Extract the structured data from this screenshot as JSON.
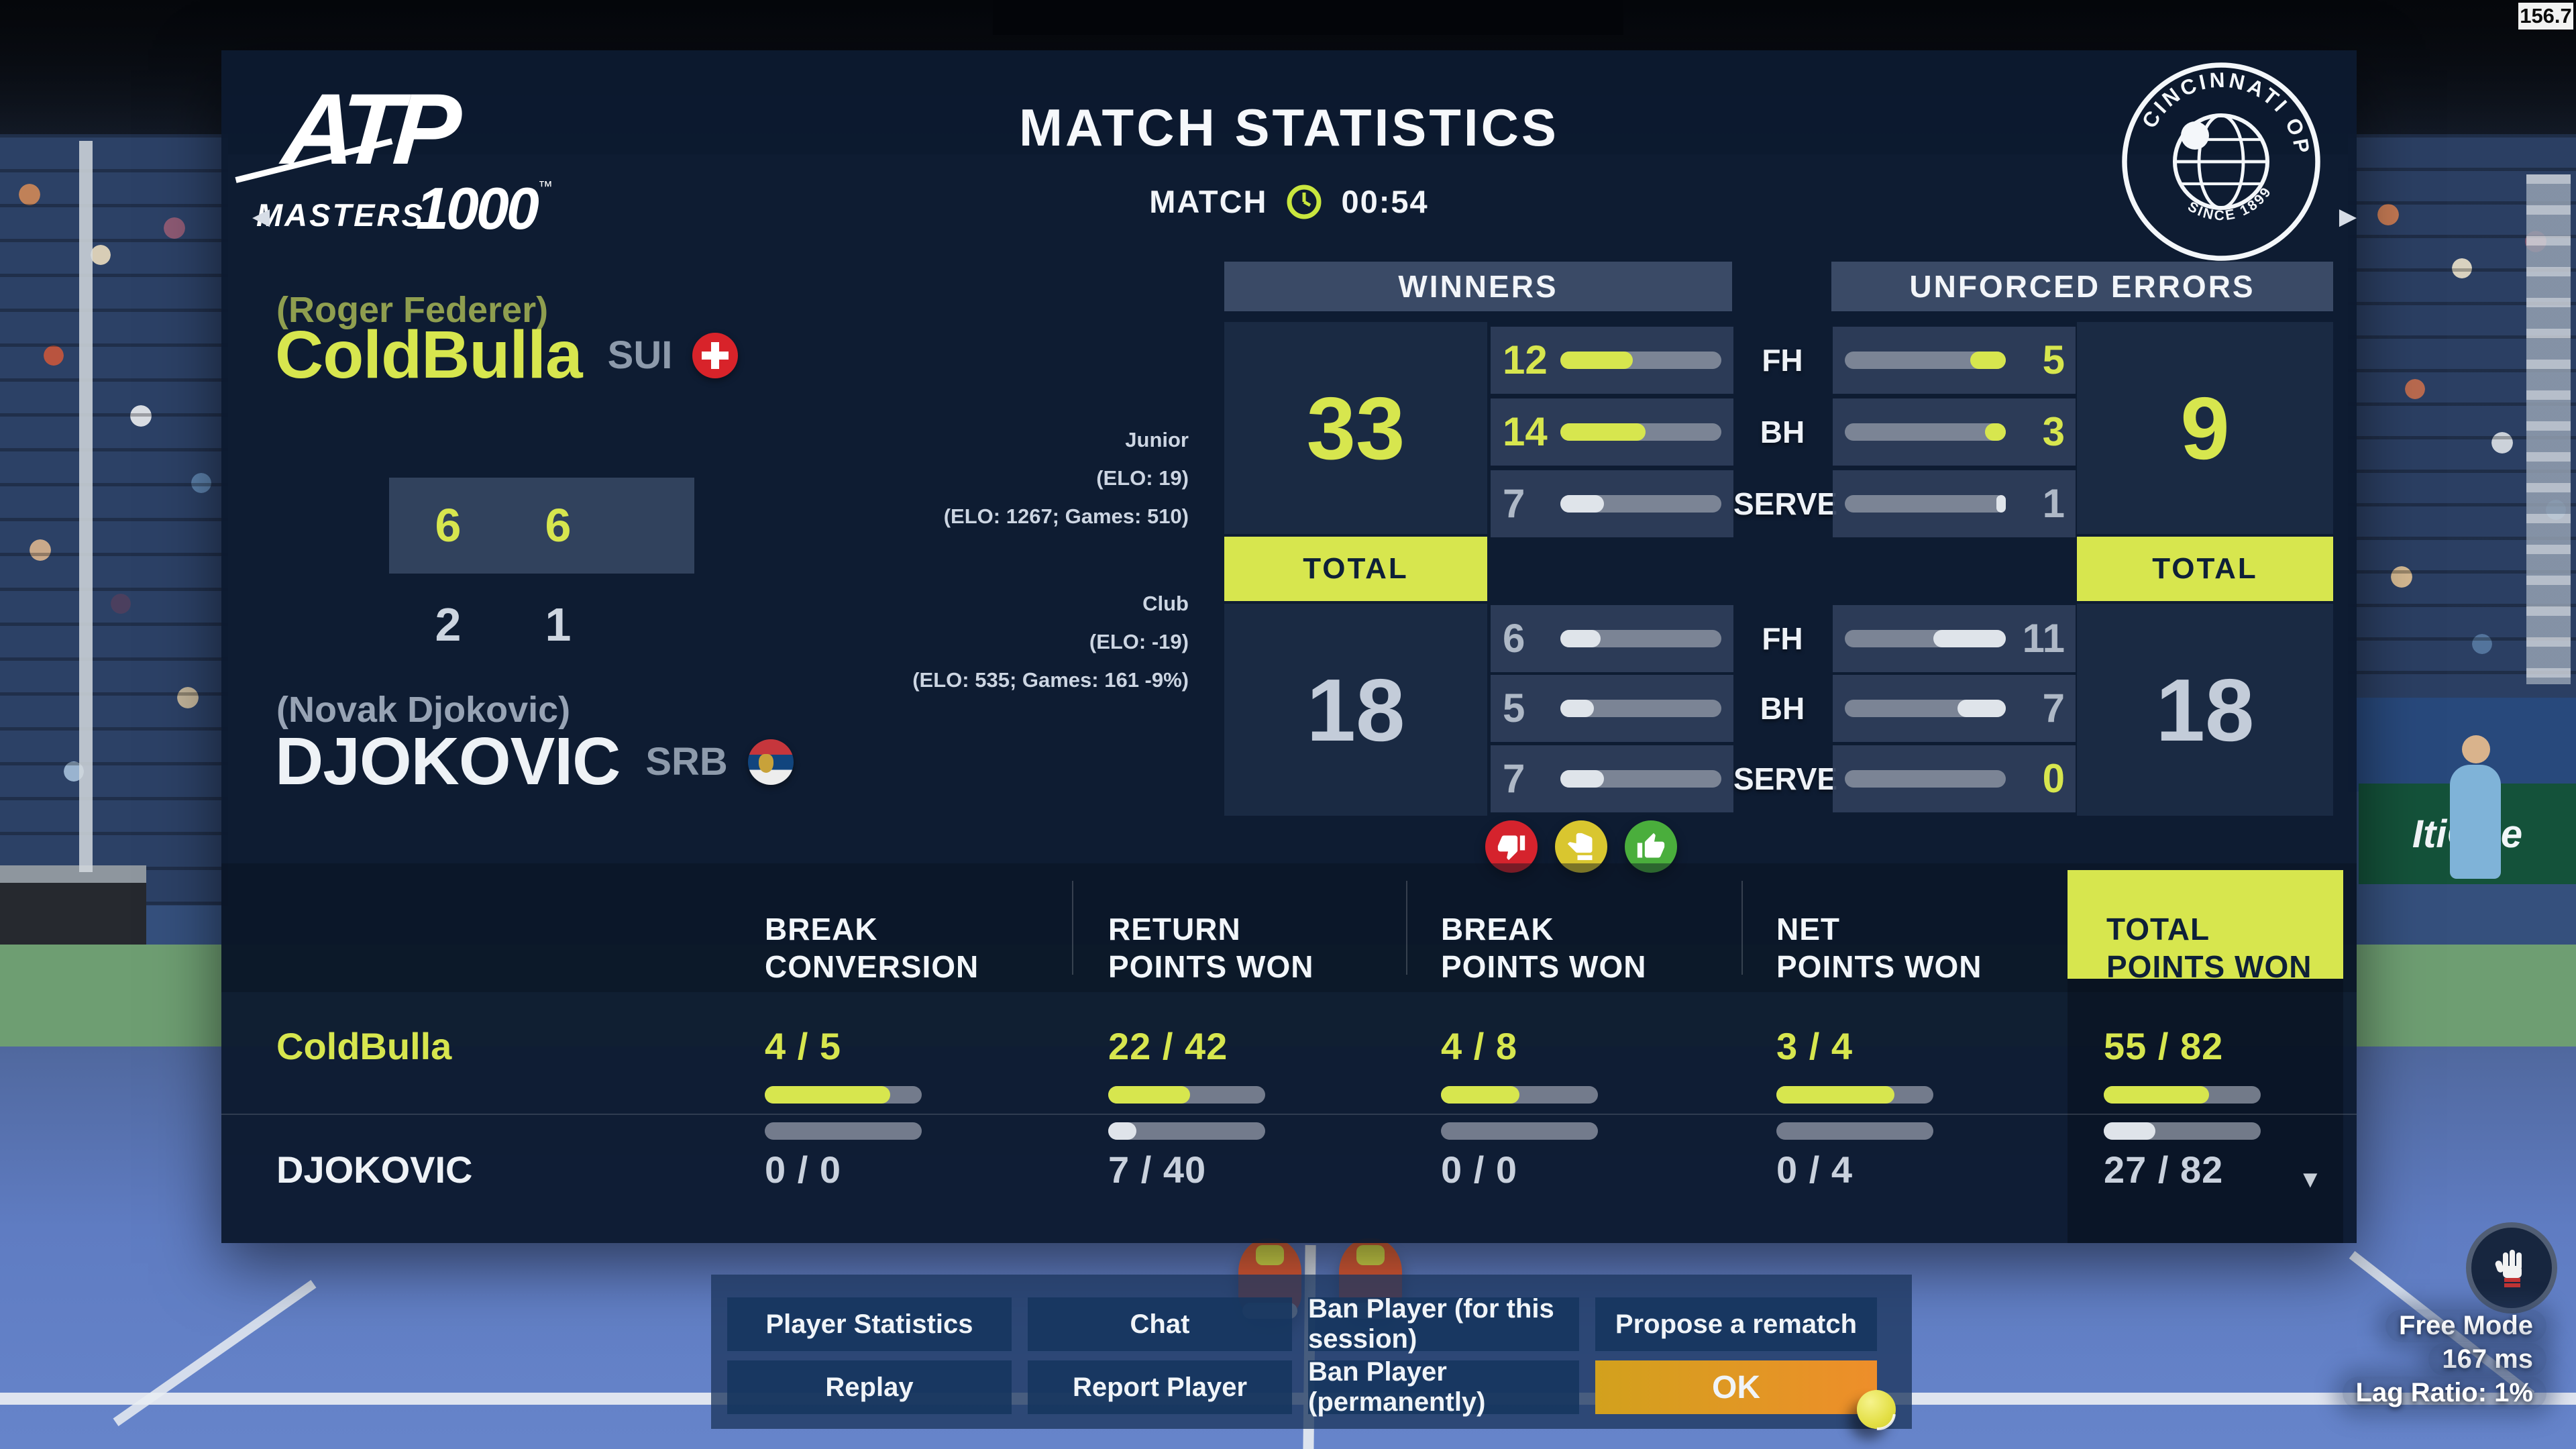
{
  "hud": {
    "fps": "156.7",
    "mode": "Free Mode",
    "ping": "167 ms",
    "lag": "Lag Ratio: 1%"
  },
  "header": {
    "title": "MATCH STATISTICS",
    "match_label": "MATCH",
    "match_time": "00:54",
    "atp_line1": "ATP",
    "atp_line2": "MASTERS",
    "atp_line3": "1000",
    "atp_tm": "™",
    "cinci_top": "CINCINNATI OPEN",
    "cinci_bottom": "SINCE 1899",
    "arrow_left": "◀",
    "arrow_right": "▶"
  },
  "players": {
    "p1": {
      "real_name": "(Roger Federer)",
      "name": "ColdBulla",
      "country": "SUI",
      "sets": [
        "6",
        "6"
      ],
      "tier": "Junior",
      "elo_line1": "(ELO: 19)",
      "elo_line2": "(ELO: 1267; Games: 510)"
    },
    "p2": {
      "real_name": "(Novak Djokovic)",
      "name": "DJOKOVIC",
      "country": "SRB",
      "sets": [
        "2",
        "1"
      ],
      "tier": "Club",
      "elo_line1": "(ELO: -19)",
      "elo_line2": "(ELO: 535; Games: 161 -9%)"
    }
  },
  "winners": {
    "title": "WINNERS",
    "total_label": "TOTAL",
    "p1_total": "33",
    "p2_total": "18",
    "rows": [
      {
        "label": "FH",
        "p1": "12",
        "p1_fill": 45,
        "p2": "6",
        "p2_fill": 25
      },
      {
        "label": "BH",
        "p1": "14",
        "p1_fill": 53,
        "p2": "5",
        "p2_fill": 21
      },
      {
        "label": "SERVE",
        "p1": "7",
        "p1_fill": 27,
        "p2": "7",
        "p2_fill": 27
      }
    ]
  },
  "unforced": {
    "title": "UNFORCED ERRORS",
    "total_label": "TOTAL",
    "p1_total": "9",
    "p2_total": "18",
    "rows": [
      {
        "label": "FH",
        "p1": "5",
        "p1_fill": 22,
        "p2": "11",
        "p2_fill": 45
      },
      {
        "label": "BH",
        "p1": "3",
        "p1_fill": 13,
        "p2": "7",
        "p2_fill": 30
      },
      {
        "label": "SERVE",
        "p1": "1",
        "p1_fill": 6,
        "p2": "0",
        "p2_fill": 0
      }
    ]
  },
  "rating": {
    "down": "thumbs-down",
    "neutral": "thumbs-neutral",
    "up": "thumbs-up"
  },
  "stats": {
    "columns": [
      {
        "l1": "BREAK",
        "l2": "CONVERSION"
      },
      {
        "l1": "RETURN",
        "l2": "POINTS WON"
      },
      {
        "l1": "BREAK",
        "l2": "POINTS WON"
      },
      {
        "l1": "NET",
        "l2": "POINTS WON"
      },
      {
        "l1": "TOTAL",
        "l2": "POINTS WON"
      }
    ],
    "p1": {
      "name": "ColdBulla",
      "values": [
        "4 / 5",
        "22 / 42",
        "4 / 8",
        "3 / 4",
        "55 / 82"
      ],
      "fills": [
        80,
        52,
        50,
        75,
        67
      ]
    },
    "p2": {
      "name": "DJOKOVIC",
      "values": [
        "0 / 0",
        "7 / 40",
        "0 / 0",
        "0 / 4",
        "27 / 82"
      ],
      "fills": [
        0,
        18,
        0,
        0,
        33
      ]
    },
    "scroll_indicator": "▼"
  },
  "menu": {
    "buttons": [
      "Player Statistics",
      "Chat",
      "Ban Player (for this session)",
      "Propose a rematch",
      "Replay",
      "Report Player",
      "Ban Player (permanently)",
      "OK"
    ]
  },
  "sponsor_board": "ItiOne",
  "colors": {
    "accent": "#d7e64e",
    "panel": "#0c1a30",
    "thumb_down": "#d5232d",
    "thumb_neutral": "#d9c62f",
    "thumb_up": "#4aae3c",
    "ok_gradient_start": "#d2a11d",
    "ok_gradient_end": "#ee8e2a"
  }
}
